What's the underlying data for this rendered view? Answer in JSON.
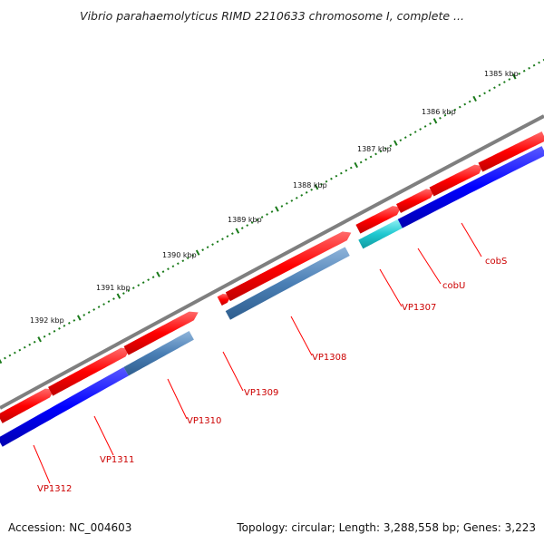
{
  "title": "Vibrio parahaemolyticus RIMD 2210633 chromosome I, complete ...",
  "footer": {
    "accession": "Accession: NC_004603",
    "summary": "Topology: circular; Length: 3,288,558 bp; Genes: 3,223"
  },
  "ruler": {
    "labels": [
      "1385 kbp",
      "1386 kbp",
      "1387 kbp",
      "1388 kbp",
      "1389 kbp",
      "1390 kbp",
      "1391 kbp",
      "1392 kbp"
    ],
    "tick_color": "#1a7a1a"
  },
  "genes": [
    {
      "label": "cobS",
      "strand": "forward"
    },
    {
      "label": "cobU",
      "strand": "forward"
    },
    {
      "label": "VP1307",
      "strand": "forward"
    },
    {
      "label": "VP1308",
      "strand": "reverse"
    },
    {
      "label": "VP1309",
      "strand": "reverse"
    },
    {
      "label": "VP1310",
      "strand": "reverse"
    },
    {
      "label": "VP1311",
      "strand": "forward"
    },
    {
      "label": "VP1312",
      "strand": "forward"
    }
  ],
  "colors": {
    "backbone": "#8a8a8a",
    "cds_forward": "#ff0000",
    "cds_reverse": "#0000ff",
    "gene_steelblue": "#4a7fb5",
    "gene_cyan": "#20c8d0",
    "label": "#cc0000"
  }
}
